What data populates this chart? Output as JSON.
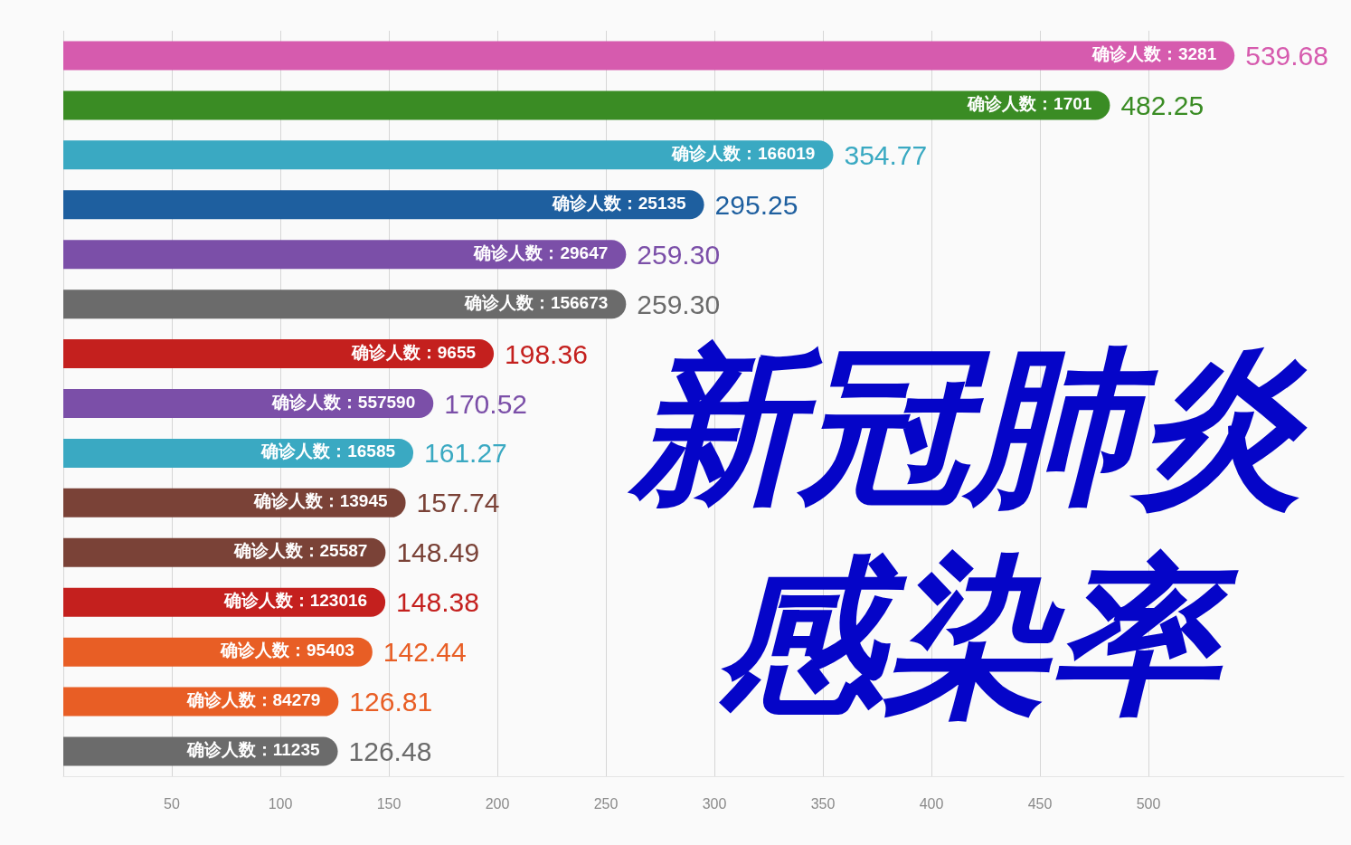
{
  "chart_data": {
    "type": "bar",
    "orientation": "horizontal",
    "title": "新冠肺炎感染率",
    "categories": [
      null,
      null,
      null,
      null,
      null,
      null,
      null,
      null,
      null,
      null,
      null,
      null,
      null,
      null,
      null
    ],
    "values": [
      539.68,
      482.25,
      354.77,
      295.25,
      259.3,
      259.3,
      198.36,
      170.52,
      161.27,
      157.74,
      148.49,
      148.38,
      142.44,
      126.81,
      126.48
    ],
    "value_labels": [
      "539.68",
      "482.25",
      "354.77",
      "295.25",
      "259.30",
      "259.30",
      "198.36",
      "170.52",
      "161.27",
      "157.74",
      "148.49",
      "148.38",
      "142.44",
      "126.81",
      "126.48"
    ],
    "colors": [
      "#d65bae",
      "#3a8c24",
      "#3aa9c2",
      "#1e5f9f",
      "#7b4fa8",
      "#6b6b6b",
      "#c4201e",
      "#7b4fa8",
      "#3aa9c2",
      "#7a4237",
      "#7a4237",
      "#c4201e",
      "#e85e25",
      "#e85e25",
      "#6b6b6b"
    ],
    "annotations": [
      {
        "text": "确诊人数：3281",
        "x": 539.68
      },
      {
        "text": "确诊人数：1701",
        "x": 482.25
      },
      {
        "text": "确诊人数：166019",
        "x": 354.77
      },
      {
        "text": "确诊人数：25135",
        "x": 295.25
      },
      {
        "text": "确诊人数：29647",
        "x": 259.3
      },
      {
        "text": "确诊人数：156673",
        "x": 259.3
      },
      {
        "text": "确诊人数：9655",
        "x": 198.36
      },
      {
        "text": "确诊人数：557590",
        "x": 170.52
      },
      {
        "text": "确诊人数：16585",
        "x": 161.27
      },
      {
        "text": "确诊人数：13945",
        "x": 157.74
      },
      {
        "text": "确诊人数：25587",
        "x": 148.49
      },
      {
        "text": "确诊人数：123016",
        "x": 148.38
      },
      {
        "text": "确诊人数：95403",
        "x": 142.44
      },
      {
        "text": "确诊人数：84279",
        "x": 126.81
      },
      {
        "text": "确诊人数：11235",
        "x": 126.48
      }
    ],
    "xlim": [
      0,
      590
    ],
    "xticks": [
      {
        "value": 0,
        "label": null
      },
      50,
      100,
      150,
      200,
      250,
      300,
      350,
      400,
      450,
      500
    ],
    "grid": "x",
    "tick_labels": "x"
  }
}
